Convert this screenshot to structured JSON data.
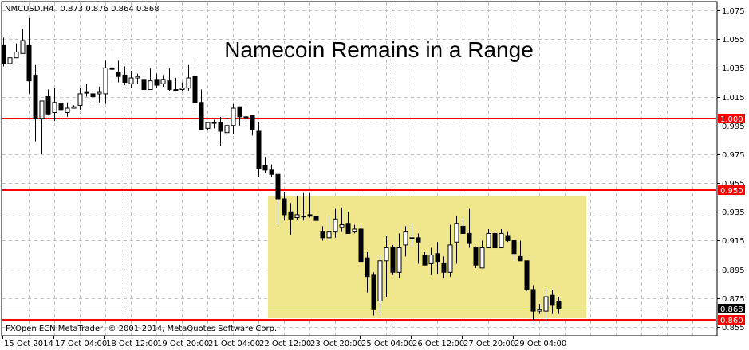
{
  "header": {
    "symbol": "NMCUSD,H4",
    "ohlc_text": "0.873 0.876 0.864 0.868"
  },
  "footer": {
    "copyright": "FXOpen ECN MetaTrader, © 2001-2014, MetaQuotes Software Corp."
  },
  "colors": {
    "background": "#ffffff",
    "grid": "#c0c0c0",
    "candle_up_fill": "#ffffff",
    "candle_down_fill": "#000000",
    "level_line": "#ff0000",
    "range_box": "#f0e68c",
    "last_price_line": "#c0c0c0",
    "last_price_badge": "#000000"
  },
  "chart_data": {
    "type": "candlestick",
    "title": "Namecoin Remains in a Range",
    "timeframe": "H4",
    "ylim": [
      0.849,
      1.081
    ],
    "grid": true,
    "y_ticks": [
      "1.075",
      "1.055",
      "1.035",
      "1.015",
      "0.995",
      "0.975",
      "0.955",
      "0.935",
      "0.915",
      "0.895",
      "0.875",
      "0.855"
    ],
    "x_ticks": [
      {
        "label": "15 Oct 2014",
        "bar": 0
      },
      {
        "label": "17 Oct 04:00",
        "bar": 8
      },
      {
        "label": "18 Oct 12:00",
        "bar": 16
      },
      {
        "label": "19 Oct 20:00",
        "bar": 24
      },
      {
        "label": "21 Oct 04:00",
        "bar": 32
      },
      {
        "label": "22 Oct 12:00",
        "bar": 40
      },
      {
        "label": "23 Oct 20:00",
        "bar": 48
      },
      {
        "label": "25 Oct 04:00",
        "bar": 56
      },
      {
        "label": "26 Oct 12:00",
        "bar": 64
      },
      {
        "label": "27 Oct 20:00",
        "bar": 72
      },
      {
        "label": "29 Oct 04:00",
        "bar": 80
      }
    ],
    "week_separators_bar": [
      19,
      61,
      103
    ],
    "horizontal_levels": [
      {
        "price": 1.0,
        "label": "1.000"
      },
      {
        "price": 0.95,
        "label": "0.950"
      },
      {
        "price": 0.86,
        "label": "0.860"
      }
    ],
    "last_price": {
      "price": 0.868,
      "label": "0.868"
    },
    "range_box": {
      "start_bar": 42,
      "end_bar": 91,
      "price_top": 0.946,
      "price_bottom": 0.861
    },
    "ohlc": [
      [
        1.051,
        1.056,
        1.036,
        1.038
      ],
      [
        1.038,
        1.056,
        1.037,
        1.042
      ],
      [
        1.042,
        1.052,
        1.042,
        1.046
      ],
      [
        1.045,
        1.062,
        1.045,
        1.054
      ],
      [
        1.051,
        1.07,
        1.017,
        1.026
      ],
      [
        1.03,
        1.037,
        0.984,
        1.0
      ],
      [
        1.0,
        1.012,
        0.975,
        1.012
      ],
      [
        1.015,
        1.02,
        1.002,
        1.003
      ],
      [
        1.004,
        1.021,
        0.998,
        1.011
      ],
      [
        1.01,
        1.019,
        1.002,
        1.006
      ],
      [
        1.004,
        1.011,
        1.001,
        1.007
      ],
      [
        1.007,
        1.009,
        1.007,
        1.008
      ],
      [
        1.009,
        1.021,
        1.006,
        1.017
      ],
      [
        1.018,
        1.024,
        1.015,
        1.018
      ],
      [
        1.017,
        1.02,
        1.01,
        1.015
      ],
      [
        1.017,
        1.022,
        1.011,
        1.018
      ],
      [
        1.017,
        1.04,
        1.01,
        1.035
      ],
      [
        1.035,
        1.05,
        1.029,
        1.034
      ],
      [
        1.032,
        1.04,
        1.025,
        1.029
      ],
      [
        1.03,
        1.036,
        1.023,
        1.025
      ],
      [
        1.024,
        1.033,
        1.021,
        1.028
      ],
      [
        1.028,
        1.031,
        1.024,
        1.029
      ],
      [
        1.027,
        1.031,
        1.019,
        1.02
      ],
      [
        1.02,
        1.035,
        1.02,
        1.026
      ],
      [
        1.027,
        1.031,
        1.021,
        1.023
      ],
      [
        1.024,
        1.03,
        1.022,
        1.027
      ],
      [
        1.026,
        1.035,
        1.019,
        1.02
      ],
      [
        1.02,
        1.028,
        1.019,
        1.02
      ],
      [
        1.02,
        1.025,
        1.019,
        1.021
      ],
      [
        1.021,
        1.037,
        1.019,
        1.028
      ],
      [
        1.029,
        1.04,
        1.004,
        1.011
      ],
      [
        1.011,
        1.02,
        0.992,
        0.992
      ],
      [
        0.993,
        0.997,
        0.992,
        0.997
      ],
      [
        0.997,
        0.999,
        0.993,
        0.997
      ],
      [
        0.997,
        1.001,
        0.981,
        0.991
      ],
      [
        0.99,
        1.01,
        0.988,
        0.995
      ],
      [
        0.995,
        1.01,
        0.989,
        1.007
      ],
      [
        1.008,
        1.008,
        0.995,
        1.001
      ],
      [
        1.001,
        1.008,
        0.995,
        1.001
      ],
      [
        1.002,
        1.002,
        0.988,
        0.992
      ],
      [
        0.991,
        0.997,
        0.959,
        0.965
      ],
      [
        0.967,
        0.973,
        0.962,
        0.964
      ],
      [
        0.964,
        0.968,
        0.959,
        0.961
      ],
      [
        0.961,
        0.962,
        0.926,
        0.944
      ],
      [
        0.944,
        0.949,
        0.929,
        0.933
      ],
      [
        0.935,
        0.941,
        0.919,
        0.93
      ],
      [
        0.931,
        0.946,
        0.929,
        0.933
      ],
      [
        0.932,
        0.948,
        0.929,
        0.932
      ],
      [
        0.933,
        0.948,
        0.931,
        0.932
      ],
      [
        0.932,
        0.932,
        0.929,
        0.929
      ],
      [
        0.921,
        0.925,
        0.915,
        0.917
      ],
      [
        0.917,
        0.932,
        0.915,
        0.921
      ],
      [
        0.921,
        0.937,
        0.917,
        0.93
      ],
      [
        0.924,
        0.938,
        0.921,
        0.926
      ],
      [
        0.927,
        0.935,
        0.92,
        0.92
      ],
      [
        0.921,
        0.926,
        0.92,
        0.923
      ],
      [
        0.923,
        0.926,
        0.9,
        0.9
      ],
      [
        0.903,
        0.907,
        0.879,
        0.89
      ],
      [
        0.891,
        0.893,
        0.863,
        0.867
      ],
      [
        0.873,
        0.905,
        0.863,
        0.901
      ],
      [
        0.901,
        0.918,
        0.876,
        0.91
      ],
      [
        0.91,
        0.912,
        0.891,
        0.893
      ],
      [
        0.893,
        0.92,
        0.889,
        0.91
      ],
      [
        0.912,
        0.925,
        0.904,
        0.921
      ],
      [
        0.917,
        0.927,
        0.911,
        0.917
      ],
      [
        0.917,
        0.92,
        0.899,
        0.914
      ],
      [
        0.905,
        0.907,
        0.898,
        0.898
      ],
      [
        0.899,
        0.91,
        0.891,
        0.905
      ],
      [
        0.906,
        0.914,
        0.892,
        0.9
      ],
      [
        0.899,
        0.904,
        0.889,
        0.893
      ],
      [
        0.893,
        0.926,
        0.89,
        0.912
      ],
      [
        0.914,
        0.932,
        0.899,
        0.927
      ],
      [
        0.925,
        0.931,
        0.92,
        0.92
      ],
      [
        0.92,
        0.937,
        0.91,
        0.913
      ],
      [
        0.91,
        0.911,
        0.896,
        0.898
      ],
      [
        0.896,
        0.915,
        0.896,
        0.91
      ],
      [
        0.91,
        0.923,
        0.91,
        0.92
      ],
      [
        0.92,
        0.921,
        0.91,
        0.91
      ],
      [
        0.91,
        0.923,
        0.91,
        0.92
      ],
      [
        0.918,
        0.921,
        0.914,
        0.915
      ],
      [
        0.915,
        0.915,
        0.901,
        0.906
      ],
      [
        0.904,
        0.915,
        0.901,
        0.901
      ],
      [
        0.901,
        0.901,
        0.88,
        0.881
      ],
      [
        0.881,
        0.884,
        0.86,
        0.866
      ],
      [
        0.866,
        0.871,
        0.864,
        0.867
      ],
      [
        0.866,
        0.882,
        0.86,
        0.876
      ],
      [
        0.877,
        0.881,
        0.864,
        0.87
      ],
      [
        0.873,
        0.876,
        0.864,
        0.868
      ]
    ]
  }
}
